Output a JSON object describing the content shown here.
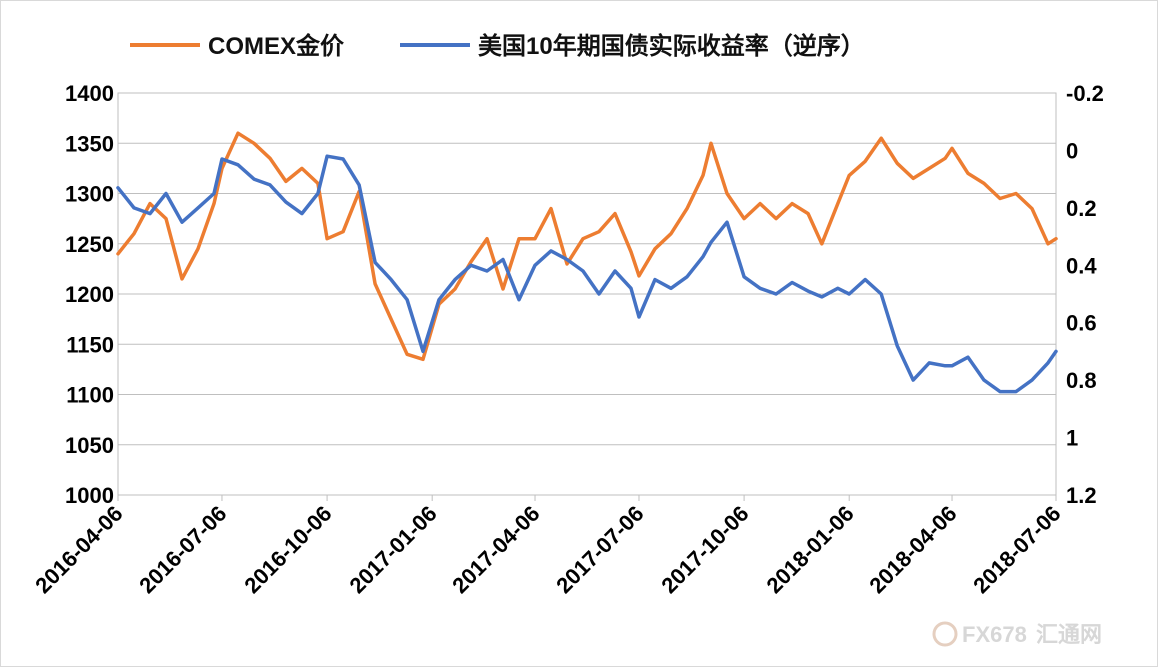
{
  "chart_data": {
    "type": "line",
    "title": "",
    "series": [
      {
        "name": "COMEX金价",
        "color": "#ED7D31",
        "axis": "left",
        "x": [
          "2016-04-06",
          "2016-04-20",
          "2016-05-04",
          "2016-05-18",
          "2016-06-01",
          "2016-06-15",
          "2016-06-29",
          "2016-07-06",
          "2016-07-20",
          "2016-08-03",
          "2016-08-17",
          "2016-08-31",
          "2016-09-14",
          "2016-09-28",
          "2016-10-06",
          "2016-10-20",
          "2016-11-03",
          "2016-11-17",
          "2016-12-01",
          "2016-12-15",
          "2016-12-29",
          "2017-01-12",
          "2017-01-26",
          "2017-02-09",
          "2017-02-23",
          "2017-03-09",
          "2017-03-23",
          "2017-04-06",
          "2017-04-20",
          "2017-05-04",
          "2017-05-18",
          "2017-06-01",
          "2017-06-15",
          "2017-06-29",
          "2017-07-06",
          "2017-07-20",
          "2017-08-03",
          "2017-08-17",
          "2017-08-31",
          "2017-09-07",
          "2017-09-21",
          "2017-10-06",
          "2017-10-20",
          "2017-11-03",
          "2017-11-17",
          "2017-12-01",
          "2017-12-13",
          "2017-12-27",
          "2018-01-06",
          "2018-01-20",
          "2018-02-03",
          "2018-02-17",
          "2018-03-03",
          "2018-03-17",
          "2018-03-31",
          "2018-04-06",
          "2018-04-20",
          "2018-05-04",
          "2018-05-18",
          "2018-06-01",
          "2018-06-15",
          "2018-06-29",
          "2018-07-06"
        ],
        "values": [
          1240,
          1260,
          1290,
          1275,
          1215,
          1245,
          1290,
          1325,
          1360,
          1350,
          1335,
          1312,
          1325,
          1310,
          1255,
          1262,
          1302,
          1210,
          1175,
          1140,
          1135,
          1190,
          1205,
          1232,
          1255,
          1205,
          1255,
          1255,
          1285,
          1230,
          1255,
          1262,
          1280,
          1242,
          1218,
          1245,
          1260,
          1285,
          1318,
          1350,
          1300,
          1275,
          1290,
          1275,
          1290,
          1280,
          1250,
          1290,
          1318,
          1332,
          1355,
          1330,
          1315,
          1325,
          1335,
          1345,
          1320,
          1310,
          1295,
          1300,
          1285,
          1250,
          1255
        ]
      },
      {
        "name": "美国10年期国债实际收益率（逆序）",
        "color": "#4472C4",
        "axis": "right",
        "x": [
          "2016-04-06",
          "2016-04-20",
          "2016-05-04",
          "2016-05-18",
          "2016-06-01",
          "2016-06-15",
          "2016-06-29",
          "2016-07-06",
          "2016-07-20",
          "2016-08-03",
          "2016-08-17",
          "2016-08-31",
          "2016-09-14",
          "2016-09-28",
          "2016-10-06",
          "2016-10-20",
          "2016-11-03",
          "2016-11-17",
          "2016-12-01",
          "2016-12-15",
          "2016-12-29",
          "2017-01-12",
          "2017-01-26",
          "2017-02-09",
          "2017-02-23",
          "2017-03-09",
          "2017-03-23",
          "2017-04-06",
          "2017-04-20",
          "2017-05-04",
          "2017-05-18",
          "2017-06-01",
          "2017-06-15",
          "2017-06-29",
          "2017-07-06",
          "2017-07-20",
          "2017-08-03",
          "2017-08-17",
          "2017-08-31",
          "2017-09-07",
          "2017-09-21",
          "2017-10-06",
          "2017-10-20",
          "2017-11-03",
          "2017-11-17",
          "2017-12-01",
          "2017-12-13",
          "2017-12-27",
          "2018-01-06",
          "2018-01-20",
          "2018-02-03",
          "2018-02-17",
          "2018-03-03",
          "2018-03-17",
          "2018-03-31",
          "2018-04-06",
          "2018-04-20",
          "2018-05-04",
          "2018-05-18",
          "2018-06-01",
          "2018-06-15",
          "2018-06-29",
          "2018-07-06"
        ],
        "values": [
          0.13,
          0.2,
          0.22,
          0.15,
          0.25,
          0.2,
          0.15,
          0.03,
          0.05,
          0.1,
          0.12,
          0.18,
          0.22,
          0.15,
          0.02,
          0.03,
          0.12,
          0.39,
          0.45,
          0.52,
          0.7,
          0.52,
          0.45,
          0.4,
          0.42,
          0.38,
          0.52,
          0.4,
          0.35,
          0.38,
          0.42,
          0.5,
          0.42,
          0.48,
          0.58,
          0.45,
          0.48,
          0.44,
          0.37,
          0.32,
          0.25,
          0.44,
          0.48,
          0.5,
          0.46,
          0.49,
          0.51,
          0.48,
          0.5,
          0.45,
          0.5,
          0.68,
          0.8,
          0.74,
          0.75,
          0.75,
          0.72,
          0.8,
          0.84,
          0.84,
          0.8,
          0.74,
          0.7
        ]
      }
    ],
    "left_axis": {
      "ylim": [
        1000,
        1400
      ],
      "ticks": [
        "1400",
        "1350",
        "1300",
        "1250",
        "1200",
        "1150",
        "1100",
        "1050",
        "1000"
      ]
    },
    "right_axis": {
      "ylim": [
        -0.2,
        1.2
      ],
      "inverted": true,
      "ticks": [
        "-0.2",
        "0",
        "0.2",
        "0.4",
        "0.6",
        "0.8",
        "1",
        "1.2"
      ]
    },
    "x_ticks": [
      "2016-04-06",
      "2016-07-06",
      "2016-10-06",
      "2017-01-06",
      "2017-04-06",
      "2017-07-06",
      "2017-10-06",
      "2018-01-06",
      "2018-04-06",
      "2018-07-06"
    ],
    "grid": true,
    "legend_position": "top"
  },
  "legend": {
    "gold_label": "COMEX金价",
    "yield_label": "美国10年期国债实际收益率（逆序）"
  },
  "watermark": {
    "text": "FX678",
    "text2": "汇通网"
  }
}
